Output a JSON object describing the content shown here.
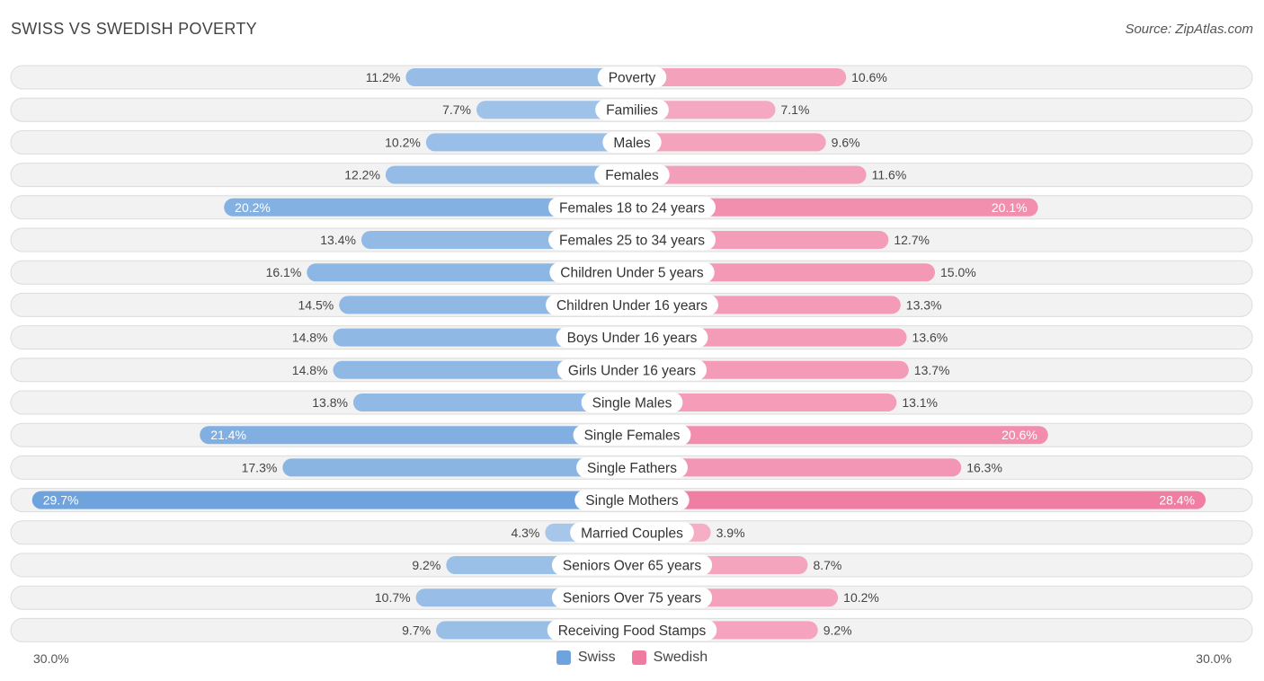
{
  "title": "SWISS VS SWEDISH POVERTY",
  "source": "Source: ZipAtlas.com",
  "colors": {
    "swiss": "#6ea3dd",
    "swedish": "#f07aa0"
  },
  "chart_data": {
    "type": "bar",
    "orientation": "horizontal-diverging",
    "title": "SWISS VS SWEDISH POVERTY",
    "xlim": [
      0,
      30.0
    ],
    "axis_labels": {
      "left": "30.0%",
      "right": "30.0%"
    },
    "categories": [
      "Poverty",
      "Families",
      "Males",
      "Females",
      "Females 18 to 24 years",
      "Females 25 to 34 years",
      "Children Under 5 years",
      "Children Under 16 years",
      "Boys Under 16 years",
      "Girls Under 16 years",
      "Single Males",
      "Single Females",
      "Single Fathers",
      "Single Mothers",
      "Married Couples",
      "Seniors Over 65 years",
      "Seniors Over 75 years",
      "Receiving Food Stamps"
    ],
    "series": [
      {
        "name": "Swiss",
        "values": [
          11.2,
          7.7,
          10.2,
          12.2,
          20.2,
          13.4,
          16.1,
          14.5,
          14.8,
          14.8,
          13.8,
          21.4,
          17.3,
          29.7,
          4.3,
          9.2,
          10.7,
          9.7
        ],
        "labels": [
          "11.2%",
          "7.7%",
          "10.2%",
          "12.2%",
          "20.2%",
          "13.4%",
          "16.1%",
          "14.5%",
          "14.8%",
          "14.8%",
          "13.8%",
          "21.4%",
          "17.3%",
          "29.7%",
          "4.3%",
          "9.2%",
          "10.7%",
          "9.7%"
        ]
      },
      {
        "name": "Swedish",
        "values": [
          10.6,
          7.1,
          9.6,
          11.6,
          20.1,
          12.7,
          15.0,
          13.3,
          13.6,
          13.7,
          13.1,
          20.6,
          16.3,
          28.4,
          3.9,
          8.7,
          10.2,
          9.2
        ],
        "labels": [
          "10.6%",
          "7.1%",
          "9.6%",
          "11.6%",
          "20.1%",
          "12.7%",
          "15.0%",
          "13.3%",
          "13.6%",
          "13.7%",
          "13.1%",
          "20.6%",
          "16.3%",
          "28.4%",
          "3.9%",
          "8.7%",
          "10.2%",
          "9.2%"
        ]
      }
    ],
    "legend": [
      "Swiss",
      "Swedish"
    ]
  }
}
